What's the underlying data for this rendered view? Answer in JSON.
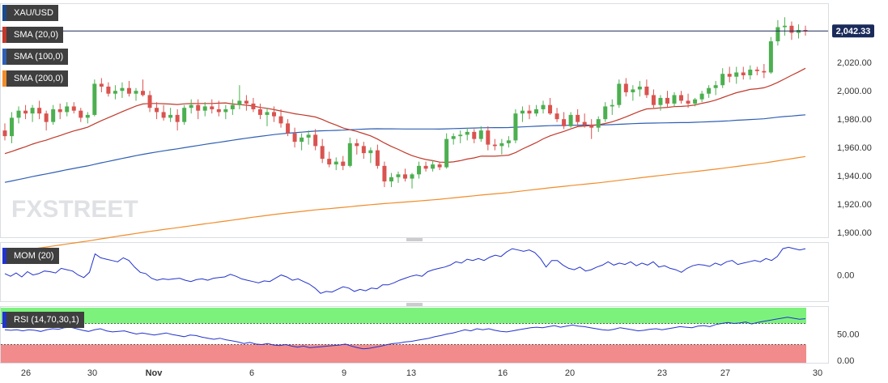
{
  "chart_data": {
    "type": "candlestick",
    "symbol": "XAU/USD",
    "last_price_label": "2,042.33",
    "last_price": 2042.33,
    "price_ylim": [
      1900,
      2050
    ],
    "price_ticks": [
      "1,900.00",
      "1,920.00",
      "1,940.00",
      "1,960.00",
      "1,980.00",
      "2,000.00",
      "2,020.00"
    ],
    "price_tick_values": [
      1900,
      1920,
      1940,
      1960,
      1980,
      2000,
      2020
    ],
    "x_tick_labels": [
      "26",
      "30",
      "Nov",
      "6",
      "9",
      "13",
      "16",
      "20",
      "23",
      "27",
      "30"
    ],
    "legend": [
      "SMA (20,0)",
      "SMA (100,0)",
      "SMA (200,0)"
    ],
    "colors": {
      "up": "#4caf50",
      "down": "#d9534f",
      "sma20": "#c0392b",
      "sma100": "#2f5fb3",
      "sma200": "#f08c2a",
      "mom": "#2233cc",
      "rsi": "#2233cc",
      "rsi_high": "#7cf27c",
      "rsi_low": "#f28b8b"
    },
    "candles": [
      [
        1972,
        1977,
        1965,
        1968
      ],
      [
        1968,
        1985,
        1963,
        1981
      ],
      [
        1981,
        1989,
        1977,
        1986
      ],
      [
        1986,
        1990,
        1980,
        1984
      ],
      [
        1984,
        1990,
        1978,
        1988
      ],
      [
        1988,
        1993,
        1980,
        1984
      ],
      [
        1984,
        1986,
        1972,
        1978
      ],
      [
        1978,
        1990,
        1976,
        1987
      ],
      [
        1987,
        1991,
        1980,
        1985
      ],
      [
        1985,
        1992,
        1982,
        1989
      ],
      [
        1989,
        1992,
        1984,
        1986
      ],
      [
        1986,
        1988,
        1978,
        1981
      ],
      [
        1981,
        1985,
        1977,
        1983
      ],
      [
        1983,
        2008,
        1982,
        2005
      ],
      [
        2005,
        2009,
        1999,
        2003
      ],
      [
        2003,
        2006,
        1996,
        1998
      ],
      [
        1998,
        2004,
        1994,
        2000
      ],
      [
        2000,
        2006,
        1995,
        2002
      ],
      [
        2002,
        2007,
        1996,
        1998
      ],
      [
        1998,
        2002,
        1993,
        2000
      ],
      [
        2000,
        2008,
        1996,
        1997
      ],
      [
        1997,
        2000,
        1985,
        1988
      ],
      [
        1988,
        1992,
        1980,
        1985
      ],
      [
        1985,
        1990,
        1979,
        1981
      ],
      [
        1981,
        1988,
        1978,
        1983
      ],
      [
        1983,
        1987,
        1972,
        1978
      ],
      [
        1978,
        1990,
        1976,
        1988
      ],
      [
        1988,
        1994,
        1984,
        1990
      ],
      [
        1990,
        1994,
        1980,
        1986
      ],
      [
        1986,
        1992,
        1982,
        1989
      ],
      [
        1989,
        1994,
        1984,
        1987
      ],
      [
        1987,
        1993,
        1982,
        1985
      ],
      [
        1985,
        1990,
        1980,
        1987
      ],
      [
        1987,
        1994,
        1983,
        1990
      ],
      [
        1990,
        2004,
        1987,
        1993
      ],
      [
        1993,
        1997,
        1986,
        1991
      ],
      [
        1991,
        1995,
        1985,
        1987
      ],
      [
        1987,
        1991,
        1980,
        1983
      ],
      [
        1983,
        1988,
        1975,
        1985
      ],
      [
        1985,
        1989,
        1978,
        1982
      ],
      [
        1982,
        1987,
        1974,
        1977
      ],
      [
        1977,
        1980,
        1968,
        1970
      ],
      [
        1970,
        1974,
        1960,
        1964
      ],
      [
        1964,
        1970,
        1958,
        1967
      ],
      [
        1967,
        1972,
        1962,
        1969
      ],
      [
        1969,
        1973,
        1958,
        1961
      ],
      [
        1961,
        1966,
        1949,
        1952
      ],
      [
        1952,
        1957,
        1946,
        1948
      ],
      [
        1948,
        1953,
        1944,
        1950
      ],
      [
        1950,
        1954,
        1944,
        1947
      ],
      [
        1947,
        1967,
        1946,
        1963
      ],
      [
        1963,
        1966,
        1955,
        1961
      ],
      [
        1961,
        1964,
        1952,
        1956
      ],
      [
        1956,
        1960,
        1949,
        1958
      ],
      [
        1958,
        1962,
        1945,
        1947
      ],
      [
        1947,
        1950,
        1932,
        1936
      ],
      [
        1936,
        1942,
        1932,
        1939
      ],
      [
        1939,
        1943,
        1935,
        1941
      ],
      [
        1941,
        1945,
        1936,
        1938
      ],
      [
        1938,
        1942,
        1931,
        1941
      ],
      [
        1941,
        1950,
        1938,
        1947
      ],
      [
        1947,
        1950,
        1943,
        1945
      ],
      [
        1945,
        1951,
        1943,
        1948
      ],
      [
        1948,
        1950,
        1944,
        1946
      ],
      [
        1946,
        1970,
        1945,
        1966
      ],
      [
        1966,
        1970,
        1962,
        1968
      ],
      [
        1968,
        1972,
        1963,
        1969
      ],
      [
        1969,
        1974,
        1965,
        1971
      ],
      [
        1971,
        1973,
        1963,
        1966
      ],
      [
        1966,
        1975,
        1964,
        1972
      ],
      [
        1972,
        1975,
        1958,
        1962
      ],
      [
        1962,
        1966,
        1958,
        1961
      ],
      [
        1961,
        1966,
        1955,
        1963
      ],
      [
        1963,
        1968,
        1960,
        1965
      ],
      [
        1965,
        1987,
        1963,
        1984
      ],
      [
        1984,
        1989,
        1978,
        1986
      ],
      [
        1986,
        1990,
        1980,
        1984
      ],
      [
        1984,
        1990,
        1982,
        1987
      ],
      [
        1987,
        1993,
        1984,
        1990
      ],
      [
        1990,
        1995,
        1983,
        1984
      ],
      [
        1984,
        1988,
        1978,
        1980
      ],
      [
        1980,
        1985,
        1973,
        1975
      ],
      [
        1975,
        1985,
        1974,
        1983
      ],
      [
        1983,
        1987,
        1975,
        1978
      ],
      [
        1978,
        1984,
        1974,
        1976
      ],
      [
        1976,
        1980,
        1966,
        1974
      ],
      [
        1974,
        1982,
        1971,
        1980
      ],
      [
        1980,
        1992,
        1978,
        1989
      ],
      [
        1989,
        1994,
        1983,
        1990
      ],
      [
        1990,
        2008,
        1988,
        2005
      ],
      [
        2005,
        2009,
        1996,
        1999
      ],
      [
        1999,
        2004,
        1993,
        2001
      ],
      [
        2001,
        2007,
        1996,
        2003
      ],
      [
        2003,
        2008,
        1995,
        1997
      ],
      [
        1997,
        2001,
        1988,
        1990
      ],
      [
        1990,
        1997,
        1986,
        1995
      ],
      [
        1995,
        2000,
        1988,
        1991
      ],
      [
        1991,
        1999,
        1989,
        1997
      ],
      [
        1997,
        2000,
        1991,
        1993
      ],
      [
        1993,
        1998,
        1988,
        1991
      ],
      [
        1991,
        1995,
        1989,
        1994
      ],
      [
        1994,
        2000,
        1992,
        1998
      ],
      [
        1998,
        2004,
        1995,
        2002
      ],
      [
        2002,
        2007,
        1997,
        2004
      ],
      [
        2004,
        2016,
        2002,
        2012
      ],
      [
        2012,
        2017,
        2006,
        2010
      ],
      [
        2010,
        2017,
        2005,
        2013
      ],
      [
        2013,
        2017,
        2008,
        2011
      ],
      [
        2011,
        2018,
        2008,
        2015
      ],
      [
        2015,
        2017,
        2011,
        2014
      ],
      [
        2014,
        2019,
        2009,
        2013
      ],
      [
        2013,
        2038,
        2012,
        2035
      ],
      [
        2035,
        2050,
        2032,
        2045
      ],
      [
        2045,
        2052,
        2039,
        2046
      ],
      [
        2046,
        2049,
        2036,
        2041
      ],
      [
        2041,
        2047,
        2037,
        2043
      ],
      [
        2043,
        2046,
        2039,
        2042
      ]
    ],
    "mom_label": "MOM (20)",
    "mom_ticks": [
      "0.00"
    ],
    "mom_ylim": [
      -35,
      45
    ],
    "mom_values": [
      2,
      -2,
      3,
      -3,
      5,
      0,
      2,
      6,
      5,
      3,
      10,
      8,
      6,
      0,
      -4,
      4,
      32,
      26,
      24,
      22,
      20,
      26,
      22,
      12,
      4,
      2,
      -5,
      -8,
      -6,
      -7,
      -6,
      -5,
      -8,
      -10,
      -7,
      -6,
      -8,
      -5,
      -4,
      -3,
      1,
      -2,
      -6,
      -8,
      -10,
      -12,
      -9,
      -10,
      -5,
      0,
      -3,
      -8,
      -6,
      -10,
      -14,
      -20,
      -28,
      -25,
      -26,
      -22,
      -18,
      -20,
      -25,
      -22,
      -24,
      -20,
      -21,
      -15,
      -15,
      -12,
      -8,
      -5,
      -2,
      0,
      -2,
      5,
      8,
      10,
      12,
      15,
      20,
      18,
      24,
      22,
      25,
      22,
      27,
      30,
      28,
      35,
      40,
      38,
      36,
      38,
      34,
      25,
      12,
      22,
      22,
      15,
      10,
      8,
      12,
      6,
      8,
      12,
      15,
      20,
      15,
      18,
      16,
      20,
      14,
      18,
      15,
      20,
      12,
      14,
      10,
      8,
      4,
      10,
      14,
      16,
      15,
      13,
      18,
      15,
      20,
      22,
      16,
      18,
      20,
      22,
      20,
      25,
      22,
      28,
      40,
      42,
      40,
      38,
      40
    ],
    "rsi_label": "RSI (14,70,30,1)",
    "rsi_ticks": [
      "50.00",
      "0.00"
    ],
    "rsi_levels": [
      70,
      30
    ],
    "rsi_ylim": [
      0,
      100
    ],
    "rsi_values": [
      58,
      57,
      58,
      56,
      58,
      57,
      55,
      58,
      60,
      59,
      62,
      63,
      60,
      57,
      55,
      58,
      60,
      56,
      54,
      55,
      56,
      53,
      50,
      52,
      50,
      48,
      50,
      52,
      49,
      47,
      45,
      48,
      47,
      44,
      42,
      40,
      42,
      39,
      37,
      35,
      32,
      34,
      31,
      30,
      32,
      29,
      28,
      30,
      27,
      25,
      27,
      24,
      25,
      26,
      27,
      28,
      29,
      31,
      27,
      24,
      22,
      23,
      25,
      27,
      30,
      32,
      33,
      35,
      36,
      38,
      40,
      42,
      45,
      47,
      50,
      52,
      55,
      58,
      56,
      60,
      58,
      60,
      57,
      55,
      54,
      56,
      58,
      60,
      62,
      63,
      62,
      64,
      66,
      63,
      65,
      67,
      65,
      64,
      62,
      60,
      58,
      57,
      59,
      62,
      60,
      58,
      56,
      57,
      59,
      60,
      58,
      60,
      62,
      64,
      63,
      62,
      65,
      66,
      64,
      68,
      70,
      72,
      70,
      71,
      73,
      69,
      72,
      74,
      76,
      78,
      80,
      82,
      80,
      78,
      79
    ]
  }
}
